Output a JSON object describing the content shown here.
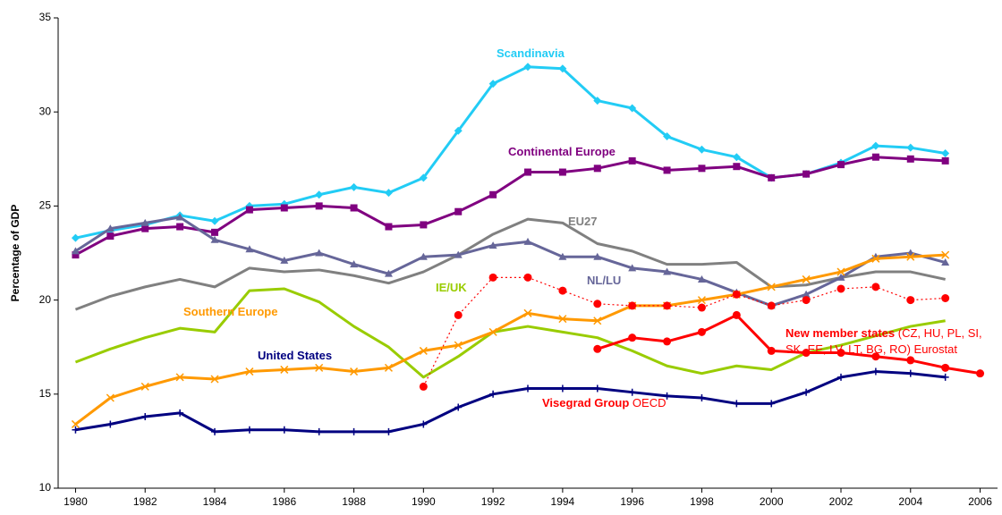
{
  "chart_data": {
    "type": "line",
    "y_label": "Percentage of GDP",
    "x": [
      1980,
      1981,
      1982,
      1983,
      1984,
      1985,
      1986,
      1987,
      1988,
      1989,
      1990,
      1991,
      1992,
      1993,
      1994,
      1995,
      1996,
      1997,
      1998,
      1999,
      2000,
      2001,
      2002,
      2003,
      2004,
      2005,
      2006
    ],
    "xlim": [
      1979.5,
      2006.5
    ],
    "xticks": [
      1980,
      1982,
      1984,
      1986,
      1988,
      1990,
      1992,
      1994,
      1996,
      1998,
      2000,
      2002,
      2004,
      2006
    ],
    "ylim": [
      10,
      35
    ],
    "yticks": [
      10,
      15,
      20,
      25,
      30,
      35
    ],
    "grid": false,
    "series": [
      {
        "name": "Scandinavia",
        "color": "#22ccf5",
        "marker": "diamond",
        "line_style": "solid",
        "values": [
          23.3,
          23.7,
          24.0,
          24.5,
          24.2,
          25.0,
          25.1,
          25.6,
          26.0,
          25.7,
          26.5,
          29.0,
          31.5,
          32.4,
          32.3,
          30.6,
          30.2,
          28.7,
          28.0,
          27.6,
          26.5,
          26.7,
          27.3,
          28.2,
          28.1,
          27.8,
          null
        ]
      },
      {
        "name": "Continental Europe",
        "color": "#800080",
        "marker": "square",
        "line_style": "solid",
        "values": [
          22.4,
          23.4,
          23.8,
          23.9,
          23.6,
          24.8,
          24.9,
          25.0,
          24.9,
          23.9,
          24.0,
          24.7,
          25.6,
          26.8,
          26.8,
          27.0,
          27.4,
          26.9,
          27.0,
          27.1,
          26.5,
          26.7,
          27.2,
          27.6,
          27.5,
          27.4,
          null
        ]
      },
      {
        "name": "EU27",
        "color": "#808080",
        "marker": "none",
        "line_style": "solid",
        "values": [
          19.5,
          20.2,
          20.7,
          21.1,
          20.7,
          21.7,
          21.5,
          21.6,
          21.3,
          20.9,
          21.5,
          22.4,
          23.5,
          24.3,
          24.1,
          23.0,
          22.6,
          21.9,
          21.9,
          22.0,
          20.7,
          20.8,
          21.2,
          21.5,
          21.5,
          21.1,
          null
        ]
      },
      {
        "name": "NL/LU",
        "color": "#666699",
        "marker": "triangle",
        "line_style": "solid",
        "values": [
          22.6,
          23.8,
          24.1,
          24.4,
          23.2,
          22.7,
          22.1,
          22.5,
          21.9,
          21.4,
          22.3,
          22.4,
          22.9,
          23.1,
          22.3,
          22.3,
          21.7,
          21.5,
          21.1,
          20.4,
          19.7,
          20.3,
          21.2,
          22.3,
          22.5,
          22.0,
          null
        ]
      },
      {
        "name": "IE/UK",
        "color": "#99cc00",
        "marker": "none",
        "line_style": "solid",
        "values": [
          16.7,
          17.4,
          18.0,
          18.5,
          18.3,
          20.5,
          20.6,
          19.9,
          18.6,
          17.5,
          15.9,
          17.0,
          18.3,
          18.6,
          18.3,
          18.0,
          17.3,
          16.5,
          16.1,
          16.5,
          16.3,
          17.2,
          17.6,
          18.1,
          18.6,
          18.9,
          null
        ]
      },
      {
        "name": "Southern Europe",
        "color": "#ff9900",
        "marker": "x",
        "line_style": "solid",
        "values": [
          13.4,
          14.8,
          15.4,
          15.9,
          15.8,
          16.2,
          16.3,
          16.4,
          16.2,
          16.4,
          17.3,
          17.6,
          18.3,
          19.3,
          19.0,
          18.9,
          19.7,
          19.7,
          20.0,
          20.3,
          20.7,
          21.1,
          21.5,
          22.2,
          22.3,
          22.4,
          null
        ]
      },
      {
        "name": "United States",
        "color": "#000080",
        "marker": "plus",
        "line_style": "solid",
        "values": [
          13.1,
          13.4,
          13.8,
          14.0,
          13.0,
          13.1,
          13.1,
          13.0,
          13.0,
          13.0,
          13.4,
          14.3,
          15.0,
          15.3,
          15.3,
          15.3,
          15.1,
          14.9,
          14.8,
          14.5,
          14.5,
          15.1,
          15.9,
          16.2,
          16.1,
          15.9,
          null
        ]
      },
      {
        "name": "Visegrad Group",
        "note": "OECD",
        "color": "#ff0000",
        "marker": "circle",
        "line_style": "dotted",
        "values": [
          null,
          null,
          null,
          null,
          null,
          null,
          null,
          null,
          null,
          null,
          15.4,
          19.2,
          21.2,
          21.2,
          20.5,
          19.8,
          19.7,
          19.7,
          19.6,
          20.3,
          19.7,
          20.0,
          20.6,
          20.7,
          20.0,
          20.1,
          null
        ]
      },
      {
        "name": "New member states",
        "note": "(CZ, HU, PL, SI, SK, EE, LV, LT, BG, RO) Eurostat",
        "color": "#ff0000",
        "marker": "circle",
        "line_style": "solid",
        "values": [
          null,
          null,
          null,
          null,
          null,
          null,
          null,
          null,
          null,
          null,
          null,
          null,
          null,
          null,
          null,
          17.4,
          18.0,
          17.8,
          18.3,
          19.2,
          17.3,
          17.2,
          17.2,
          17.0,
          16.8,
          16.4,
          16.1
        ]
      }
    ]
  }
}
